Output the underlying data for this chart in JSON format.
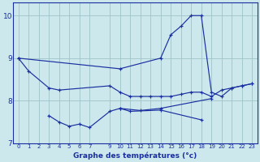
{
  "xlabel": "Graphe des températures (°c)",
  "background_color": "#cce8ec",
  "line_color": "#1a2fa0",
  "grid_color": "#9fc4c8",
  "xlim": [
    -0.5,
    23.5
  ],
  "ylim": [
    7.0,
    10.3
  ],
  "yticks": [
    7,
    8,
    9,
    10
  ],
  "xticks": [
    0,
    1,
    2,
    3,
    4,
    5,
    6,
    7,
    9,
    10,
    11,
    12,
    13,
    14,
    15,
    16,
    17,
    18,
    19,
    20,
    21,
    22,
    23
  ],
  "series": [
    {
      "x": [
        0,
        1,
        3,
        4,
        9,
        10,
        11,
        12,
        13,
        14,
        15,
        16,
        17,
        18,
        19,
        20,
        21,
        22,
        23
      ],
      "y": [
        9.0,
        8.7,
        8.3,
        8.25,
        8.35,
        8.2,
        8.1,
        8.1,
        8.1,
        8.1,
        8.1,
        8.15,
        8.2,
        8.2,
        8.1,
        8.25,
        8.3,
        8.35,
        8.4
      ]
    },
    {
      "x": [
        0,
        10,
        14,
        15,
        16,
        17,
        18,
        19,
        20,
        21,
        22,
        23
      ],
      "y": [
        9.0,
        8.75,
        9.0,
        9.55,
        9.75,
        10.0,
        10.0,
        8.2,
        8.1,
        8.3,
        8.35,
        8.4
      ]
    },
    {
      "x": [
        3,
        4,
        5,
        6,
        7,
        9,
        10,
        11,
        14,
        18
      ],
      "y": [
        7.65,
        7.5,
        7.4,
        7.45,
        7.37,
        7.75,
        7.82,
        7.75,
        7.78,
        7.55
      ]
    },
    {
      "x": [
        10,
        12,
        14,
        19
      ],
      "y": [
        7.82,
        7.77,
        7.82,
        8.05
      ]
    }
  ]
}
